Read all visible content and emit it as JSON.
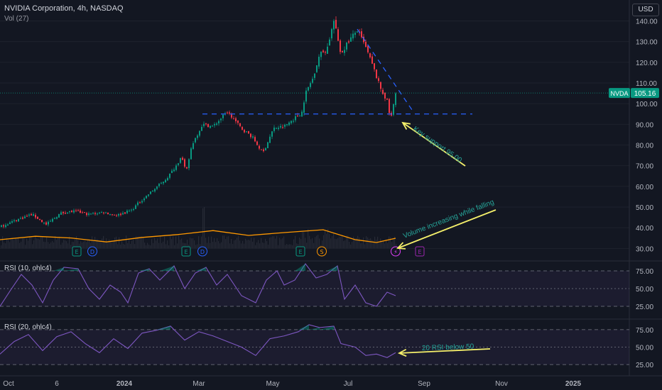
{
  "header": {
    "title": "NVIDIA Corporation, 4h, NASDAQ",
    "volume_label": "Vol (27)",
    "currency_button": "USD"
  },
  "price_tag": {
    "symbol": "NVDA",
    "value": "105.16",
    "color": "#089981"
  },
  "panes": {
    "rsi1_label": "RSI (10, ohlc4)",
    "rsi2_label": "RSI (20, ohlc4)"
  },
  "colors": {
    "background": "#131722",
    "up": "#089981",
    "down": "#f23645",
    "annotation": "#f5f06b",
    "trendline": "#2962ff",
    "rsi": "#7e57c2",
    "volume_ma": "#ff9800"
  },
  "chart_data": {
    "type": "candlestick",
    "y_axis": {
      "ticks": [
        30,
        40,
        50,
        60,
        70,
        80,
        90,
        100,
        110,
        120,
        130,
        140
      ],
      "range": [
        26,
        146
      ]
    },
    "x_axis": {
      "ticks": [
        "Oct",
        "6",
        "2024",
        "Mar",
        "May",
        "Jul",
        "Sep",
        "Nov",
        "2025"
      ]
    },
    "price_path": [
      [
        0,
        40.5
      ],
      [
        25,
        44.0
      ],
      [
        45,
        46.5
      ],
      [
        65,
        41.5
      ],
      [
        85,
        47.0
      ],
      [
        105,
        48.0
      ],
      [
        125,
        46.5
      ],
      [
        145,
        47.5
      ],
      [
        165,
        46.0
      ],
      [
        185,
        48.5
      ],
      [
        195,
        52.0
      ],
      [
        215,
        58.0
      ],
      [
        235,
        64.0
      ],
      [
        250,
        71.0
      ],
      [
        255,
        75.0
      ],
      [
        262,
        66.5
      ],
      [
        270,
        80.0
      ],
      [
        285,
        90.0
      ],
      [
        300,
        89.0
      ],
      [
        320,
        96.0
      ],
      [
        340,
        88.0
      ],
      [
        355,
        84.0
      ],
      [
        370,
        76.0
      ],
      [
        385,
        88.0
      ],
      [
        400,
        89.0
      ],
      [
        415,
        93.0
      ],
      [
        425,
        96.0
      ],
      [
        430,
        105.0
      ],
      [
        440,
        112.0
      ],
      [
        450,
        124.0
      ],
      [
        460,
        126.0
      ],
      [
        470,
        140.0
      ],
      [
        480,
        124.0
      ],
      [
        490,
        130.0
      ],
      [
        503,
        135.5
      ],
      [
        515,
        127.0
      ],
      [
        525,
        118.0
      ],
      [
        535,
        108.0
      ],
      [
        545,
        101.0
      ],
      [
        550,
        92.0
      ],
      [
        557,
        105.0
      ]
    ],
    "last_price": 105.16,
    "volume_ma_path": [
      [
        0,
        0.3
      ],
      [
        50,
        0.42
      ],
      [
        100,
        0.36
      ],
      [
        150,
        0.22
      ],
      [
        200,
        0.38
      ],
      [
        250,
        0.48
      ],
      [
        300,
        0.62
      ],
      [
        350,
        0.45
      ],
      [
        400,
        0.55
      ],
      [
        455,
        0.65
      ],
      [
        500,
        0.3
      ],
      [
        530,
        0.2
      ],
      [
        557,
        0.35
      ]
    ],
    "event_markers": [
      {
        "label": "E",
        "kind": "earnings",
        "x": 108
      },
      {
        "label": "D",
        "kind": "dividend",
        "x": 130
      },
      {
        "label": "E",
        "kind": "earnings",
        "x": 262
      },
      {
        "label": "D",
        "kind": "dividend",
        "x": 285
      },
      {
        "label": "E",
        "kind": "earnings",
        "x": 423
      },
      {
        "label": "S",
        "kind": "split",
        "x": 453
      },
      {
        "label": "⚡",
        "kind": "event",
        "x": 557
      },
      {
        "label": "E",
        "kind": "earnings",
        "x": 591
      }
    ],
    "rsi10": {
      "levels": [
        75,
        50,
        25
      ],
      "ticks": [
        75.0,
        50.0,
        25.0
      ],
      "range": [
        15,
        85
      ],
      "path": [
        [
          0,
          25
        ],
        [
          15,
          48
        ],
        [
          30,
          70
        ],
        [
          45,
          55
        ],
        [
          60,
          30
        ],
        [
          75,
          62
        ],
        [
          90,
          80
        ],
        [
          110,
          78
        ],
        [
          125,
          50
        ],
        [
          140,
          35
        ],
        [
          155,
          55
        ],
        [
          170,
          45
        ],
        [
          180,
          30
        ],
        [
          195,
          72
        ],
        [
          210,
          78
        ],
        [
          225,
          62
        ],
        [
          245,
          82
        ],
        [
          260,
          50
        ],
        [
          275,
          72
        ],
        [
          290,
          80
        ],
        [
          305,
          55
        ],
        [
          320,
          70
        ],
        [
          340,
          40
        ],
        [
          360,
          30
        ],
        [
          375,
          62
        ],
        [
          390,
          75
        ],
        [
          400,
          55
        ],
        [
          415,
          62
        ],
        [
          430,
          85
        ],
        [
          445,
          65
        ],
        [
          460,
          70
        ],
        [
          475,
          82
        ],
        [
          485,
          35
        ],
        [
          500,
          55
        ],
        [
          515,
          30
        ],
        [
          530,
          25
        ],
        [
          545,
          45
        ],
        [
          557,
          40
        ]
      ]
    },
    "rsi20": {
      "levels": [
        75,
        50,
        25
      ],
      "ticks": [
        75.0,
        50.0,
        25.0
      ],
      "range": [
        15,
        85
      ],
      "path": [
        [
          0,
          40
        ],
        [
          20,
          58
        ],
        [
          40,
          68
        ],
        [
          60,
          45
        ],
        [
          80,
          65
        ],
        [
          100,
          72
        ],
        [
          120,
          55
        ],
        [
          140,
          42
        ],
        [
          160,
          62
        ],
        [
          180,
          48
        ],
        [
          200,
          70
        ],
        [
          220,
          74
        ],
        [
          240,
          80
        ],
        [
          260,
          60
        ],
        [
          280,
          72
        ],
        [
          300,
          66
        ],
        [
          320,
          58
        ],
        [
          340,
          50
        ],
        [
          360,
          38
        ],
        [
          380,
          62
        ],
        [
          400,
          66
        ],
        [
          420,
          72
        ],
        [
          435,
          82
        ],
        [
          450,
          78
        ],
        [
          470,
          80
        ],
        [
          480,
          55
        ],
        [
          500,
          50
        ],
        [
          515,
          38
        ],
        [
          530,
          40
        ],
        [
          545,
          35
        ],
        [
          557,
          42
        ]
      ]
    },
    "annotations": [
      {
        "text": "Key support 95.00"
      },
      {
        "text": "Volume increasing while falling"
      },
      {
        "text": "20 RSI below 50"
      }
    ]
  }
}
